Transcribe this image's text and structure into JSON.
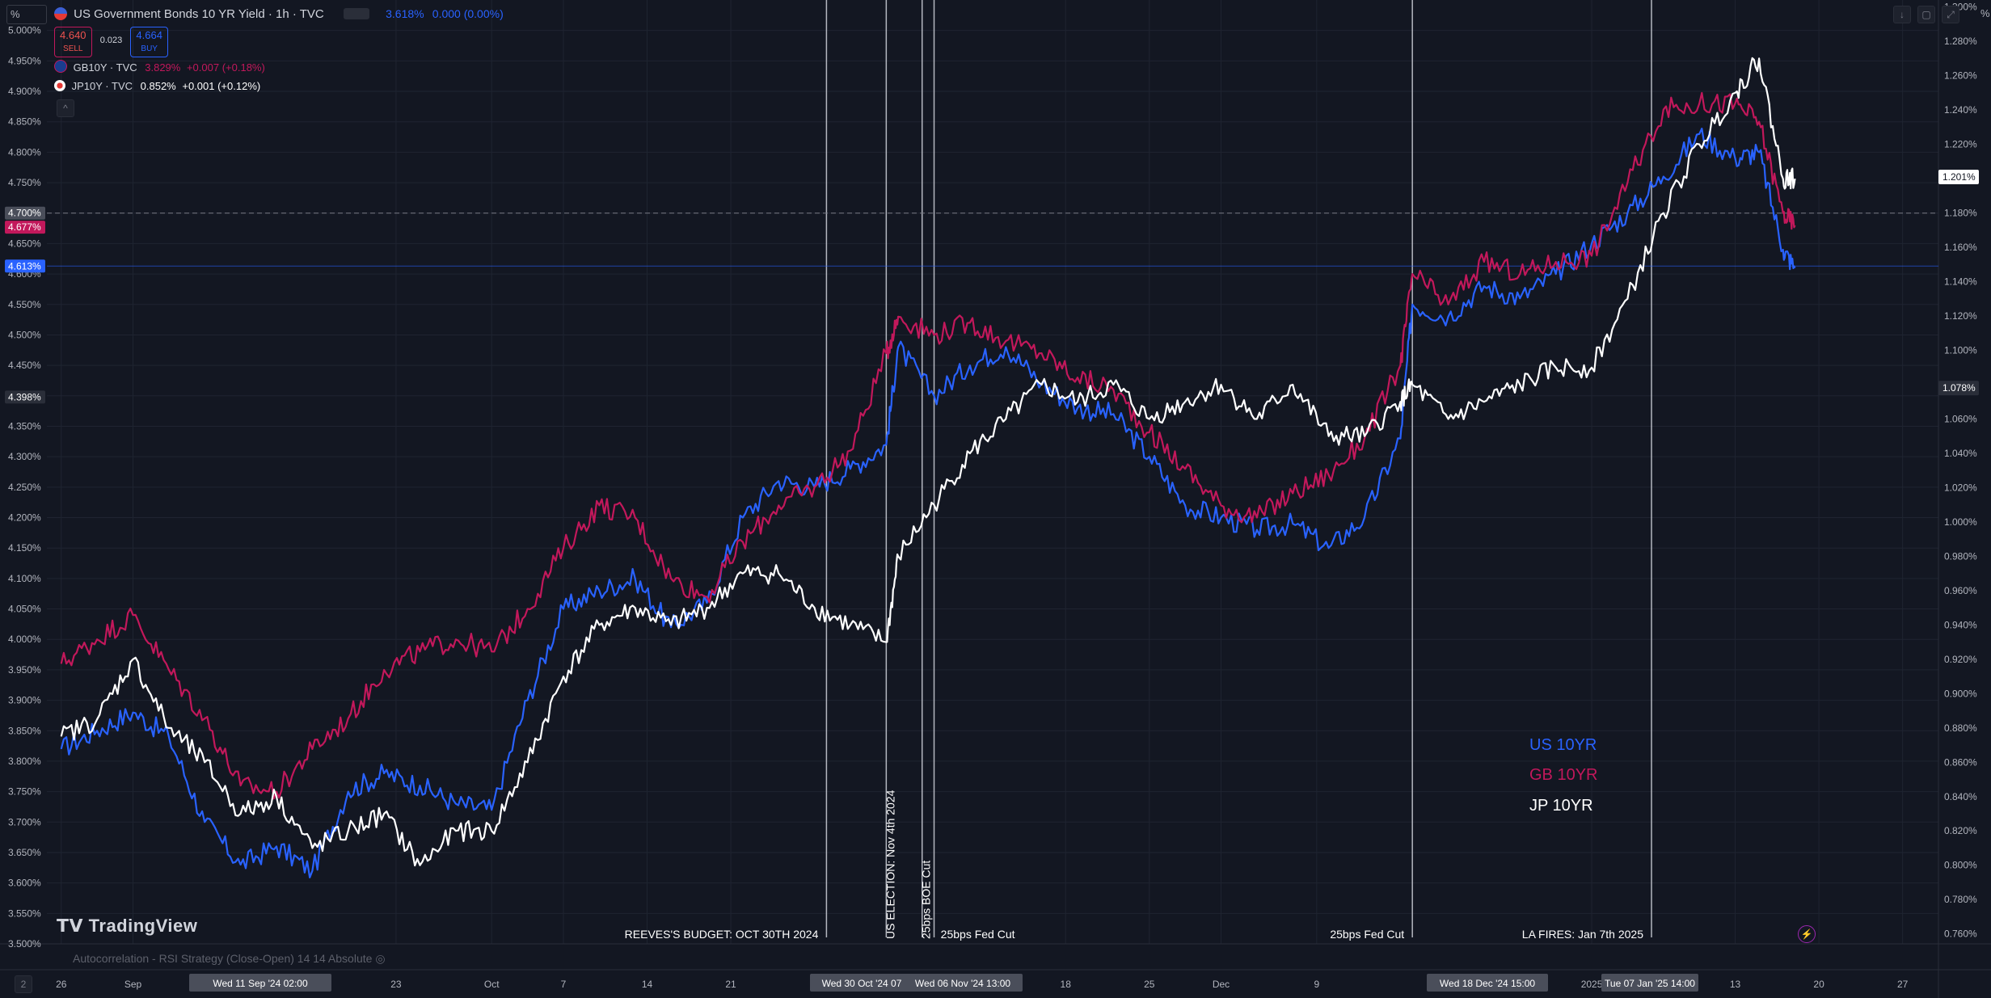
{
  "header": {
    "unit_selector": "%",
    "title": "US Government Bonds 10 YR Yield · 1h · TVC",
    "last": "3.618%",
    "change": "0.000 (0.00%)",
    "sell_price": "4.640",
    "sell_label": "SELL",
    "spread": "0.023",
    "buy_price": "4.664",
    "buy_label": "BUY",
    "right_unit": "%",
    "collapse_glyph": "^"
  },
  "compare": [
    {
      "name": "GB10Y · TVC",
      "price": "3.829%",
      "change": "+0.007 (+0.18%)",
      "color": "#c2185b"
    },
    {
      "name": "JP10Y · TVC",
      "price": "0.852%",
      "change": "+0.001 (+0.12%)",
      "color": "#ffffff"
    }
  ],
  "colors": {
    "us": "#2962ff",
    "gb": "#c2185b",
    "jp": "#ffffff",
    "bg": "#131722",
    "grid": "#1f2431",
    "text": "#b2b5be"
  },
  "price_tags": {
    "left": [
      {
        "label": "4.700%",
        "value": 4.7,
        "bg": "#4a4e5a"
      },
      {
        "label": "4.677%",
        "value": 4.677,
        "bg": "#c2185b"
      },
      {
        "label": "4.613%",
        "value": 4.613,
        "bg": "#2962ff"
      },
      {
        "label": "4.398%",
        "value": 4.398,
        "bg": "#2a2e39"
      }
    ],
    "right": [
      {
        "label": "1.201%",
        "value": 1.201,
        "bg": "#ffffff"
      },
      {
        "label": "1.078%",
        "value": 1.078,
        "bg": "#2a2e39"
      }
    ]
  },
  "events": [
    {
      "label": "REEVES'S BUDGET: OCT 30TH 2024",
      "day": 64,
      "vertical": false
    },
    {
      "label": "US ELECTION: Nov 4th 2024",
      "day": 69,
      "vertical": true
    },
    {
      "label": "25bps BOE Cut",
      "day": 72,
      "vertical": true
    },
    {
      "label": "25bps Fed Cut",
      "day": 73,
      "vertical": false
    },
    {
      "label": "25bps Fed Cut",
      "day": 113,
      "vertical": false
    },
    {
      "label": "LA FIRES: Jan 7th 2025",
      "day": 133,
      "vertical": false
    }
  ],
  "time_badges": [
    "Wed 11 Sep '24   02:00",
    "Wed 30 Oct '24   07",
    "Wed 06 Nov '24   13:00",
    "Wed 18 Dec '24   15:00",
    "Tue 07 Jan '25   14:00"
  ],
  "indicator": "Autocorrelation - RSI Strategy (Close-Open) 14 14 Absolute",
  "logo": "TradingView",
  "bottom_left_btn": "2",
  "legend": [
    {
      "label": "US 10YR",
      "color": "#2962ff"
    },
    {
      "label": "GB 10YR",
      "color": "#c2185b"
    },
    {
      "label": "JP 10YR",
      "color": "#ffffff"
    }
  ],
  "chart_data": {
    "type": "line",
    "x_unit": "days since 2024-08-26",
    "x_ticks": [
      {
        "label": "26",
        "day": 0
      },
      {
        "label": "Sep",
        "day": 6
      },
      {
        "label": "23",
        "day": 28
      },
      {
        "label": "Oct",
        "day": 36
      },
      {
        "label": "7",
        "day": 42
      },
      {
        "label": "14",
        "day": 49
      },
      {
        "label": "21",
        "day": 56
      },
      {
        "label": "18",
        "day": 84
      },
      {
        "label": "25",
        "day": 91
      },
      {
        "label": "Dec",
        "day": 97
      },
      {
        "label": "9",
        "day": 105
      },
      {
        "label": "2025",
        "day": 128
      },
      {
        "label": "13",
        "day": 140
      },
      {
        "label": "20",
        "day": 147
      },
      {
        "label": "27",
        "day": 154
      }
    ],
    "xlim": [
      -1.2,
      157
    ],
    "left_axis": {
      "label": "%",
      "ylim": [
        3.5,
        5.05
      ],
      "ticks": [
        3.5,
        3.55,
        3.6,
        3.65,
        3.7,
        3.75,
        3.8,
        3.85,
        3.9,
        3.95,
        4.0,
        4.05,
        4.1,
        4.15,
        4.2,
        4.25,
        4.3,
        4.35,
        4.4,
        4.45,
        4.5,
        4.55,
        4.6,
        4.65,
        4.7,
        4.75,
        4.8,
        4.85,
        4.9,
        4.95,
        5.0
      ]
    },
    "right_axis": {
      "label": "%",
      "ylim": [
        0.7542,
        1.3041
      ],
      "ticks": [
        0.76,
        0.78,
        0.8,
        0.82,
        0.84,
        0.86,
        0.88,
        0.9,
        0.92,
        0.94,
        0.96,
        0.98,
        1.0,
        1.02,
        1.04,
        1.06,
        1.08,
        1.1,
        1.12,
        1.14,
        1.16,
        1.18,
        1.2,
        1.22,
        1.24,
        1.26,
        1.28,
        1.3
      ]
    },
    "series": [
      {
        "name": "US 10YR",
        "axis": "left",
        "color": "#2962ff",
        "x": [
          0,
          3,
          6,
          9,
          12,
          15,
          18,
          21,
          24,
          27,
          30,
          33,
          36,
          39,
          42,
          45,
          48,
          51,
          54,
          57,
          60,
          63,
          66,
          69,
          70,
          73,
          76,
          79,
          82,
          85,
          88,
          91,
          94,
          97,
          100,
          103,
          106,
          109,
          112,
          113,
          116,
          119,
          122,
          125,
          128,
          131,
          134,
          137,
          140,
          142,
          144,
          145
        ],
        "y": [
          3.82,
          3.85,
          3.88,
          3.84,
          3.7,
          3.63,
          3.66,
          3.62,
          3.75,
          3.78,
          3.76,
          3.73,
          3.72,
          3.9,
          4.05,
          4.08,
          4.1,
          4.02,
          4.06,
          4.2,
          4.26,
          4.25,
          4.28,
          4.32,
          4.48,
          4.4,
          4.45,
          4.48,
          4.42,
          4.38,
          4.37,
          4.3,
          4.22,
          4.2,
          4.18,
          4.19,
          4.15,
          4.2,
          4.33,
          4.55,
          4.53,
          4.58,
          4.56,
          4.6,
          4.65,
          4.7,
          4.76,
          4.83,
          4.79,
          4.8,
          4.64,
          4.61
        ]
      },
      {
        "name": "GB 10YR",
        "axis": "left",
        "color": "#c2185b",
        "x": [
          0,
          3,
          6,
          9,
          12,
          15,
          18,
          21,
          24,
          27,
          30,
          33,
          36,
          39,
          42,
          45,
          48,
          51,
          54,
          57,
          60,
          63,
          66,
          69,
          70,
          73,
          76,
          79,
          82,
          85,
          88,
          91,
          94,
          97,
          100,
          103,
          106,
          109,
          112,
          113,
          116,
          119,
          122,
          125,
          128,
          131,
          134,
          137,
          140,
          142,
          144,
          145
        ],
        "y": [
          3.96,
          4.0,
          4.04,
          3.95,
          3.87,
          3.76,
          3.75,
          3.82,
          3.87,
          3.95,
          3.98,
          4.0,
          3.98,
          4.05,
          4.15,
          4.22,
          4.2,
          4.1,
          4.07,
          4.16,
          4.22,
          4.25,
          4.31,
          4.47,
          4.53,
          4.5,
          4.52,
          4.49,
          4.47,
          4.43,
          4.41,
          4.34,
          4.28,
          4.22,
          4.2,
          4.24,
          4.27,
          4.33,
          4.45,
          4.6,
          4.55,
          4.62,
          4.6,
          4.62,
          4.63,
          4.75,
          4.87,
          4.88,
          4.88,
          4.85,
          4.7,
          4.68
        ]
      },
      {
        "name": "JP 10YR",
        "axis": "right",
        "color": "#ffffff",
        "x": [
          0,
          3,
          6,
          9,
          12,
          15,
          18,
          21,
          24,
          27,
          30,
          33,
          36,
          39,
          42,
          45,
          48,
          51,
          54,
          57,
          60,
          63,
          66,
          69,
          70,
          73,
          76,
          79,
          82,
          85,
          88,
          91,
          94,
          97,
          100,
          103,
          106,
          109,
          112,
          113,
          116,
          119,
          122,
          125,
          128,
          131,
          134,
          137,
          140,
          142,
          144,
          145
        ],
        "y": [
          0.875,
          0.885,
          0.92,
          0.88,
          0.86,
          0.83,
          0.84,
          0.81,
          0.82,
          0.83,
          0.8,
          0.82,
          0.82,
          0.86,
          0.91,
          0.94,
          0.95,
          0.94,
          0.95,
          0.97,
          0.97,
          0.95,
          0.94,
          0.93,
          0.98,
          1.01,
          1.04,
          1.06,
          1.08,
          1.07,
          1.08,
          1.06,
          1.07,
          1.08,
          1.06,
          1.08,
          1.05,
          1.05,
          1.07,
          1.08,
          1.06,
          1.07,
          1.08,
          1.09,
          1.09,
          1.13,
          1.18,
          1.22,
          1.25,
          1.27,
          1.2,
          1.2
        ]
      }
    ]
  }
}
